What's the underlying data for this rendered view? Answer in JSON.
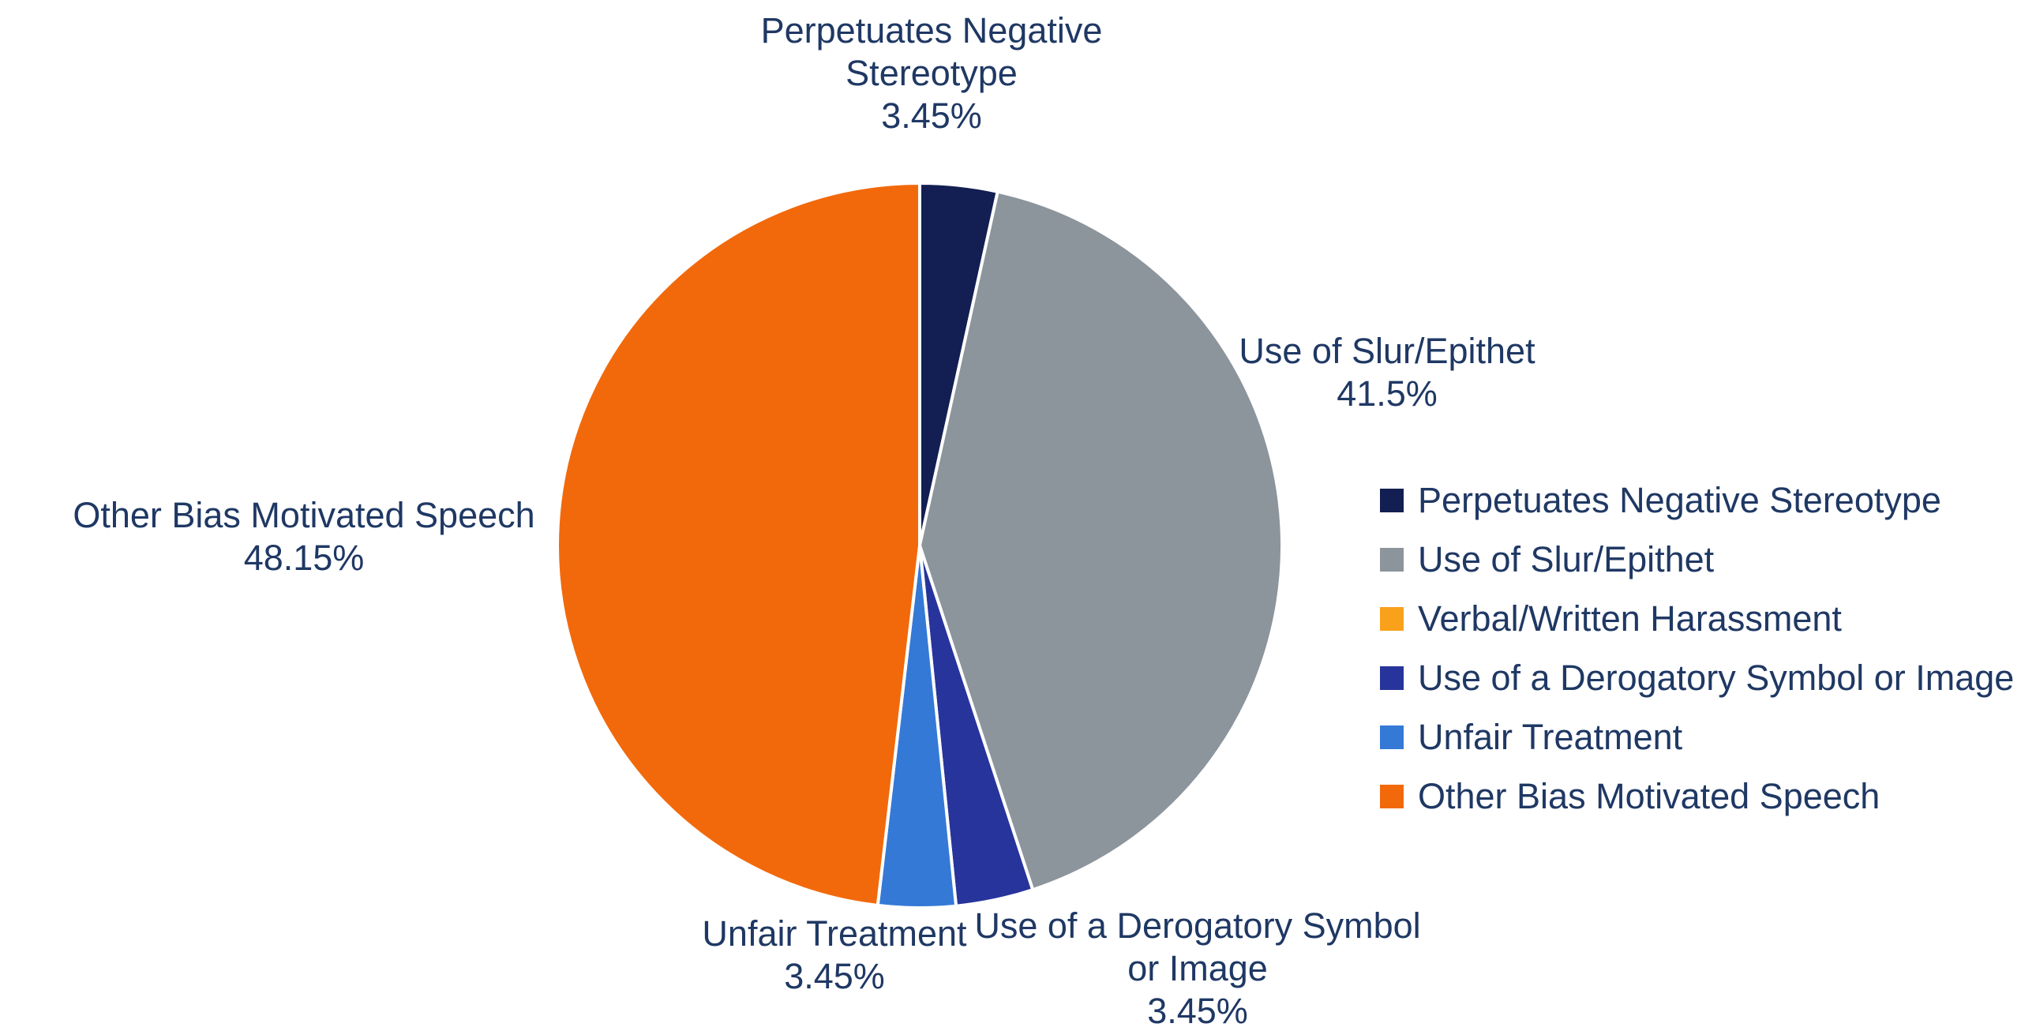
{
  "chart_data": {
    "type": "pie",
    "title": "",
    "unit": "%",
    "direction": "clockwise",
    "start_angle_deg": 0,
    "legend_position": "right",
    "slices": [
      {
        "label": "Perpetuates Negative Stereotype",
        "value": 3.45,
        "color": "#131F52"
      },
      {
        "label": "Use of Slur/Epithet",
        "value": 41.5,
        "color": "#8C949C"
      },
      {
        "label": "Verbal/Written Harassment",
        "value": 0,
        "color": "#F9A11B"
      },
      {
        "label": "Use of a Derogatory Symbol or Image",
        "value": 3.45,
        "color": "#27349B"
      },
      {
        "label": "Unfair Treatment",
        "value": 3.45,
        "color": "#3579D6"
      },
      {
        "label": "Other Bias Motivated Speech",
        "value": 48.15,
        "color": "#F2690B"
      }
    ],
    "data_labels": [
      {
        "slice": "Perpetuates Negative Stereotype",
        "lines": [
          "Perpetuates Negative",
          "Stereotype",
          "3.45%"
        ]
      },
      {
        "slice": "Use of Slur/Epithet",
        "lines": [
          "Use of Slur/Epithet",
          "41.5%"
        ]
      },
      {
        "slice": "Other Bias Motivated Speech",
        "lines": [
          "Other Bias Motivated Speech",
          "48.15%"
        ]
      },
      {
        "slice": "Unfair Treatment",
        "lines": [
          "Unfair Treatment",
          "3.45%"
        ]
      },
      {
        "slice": "Use of a Derogatory Symbol or Image",
        "lines": [
          "Use of a Derogatory Symbol",
          "or Image",
          "3.45%"
        ]
      }
    ],
    "legend_items": [
      "Perpetuates Negative Stereotype",
      "Use of Slur/Epithet",
      "Verbal/Written Harassment",
      "Use of a Derogatory Symbol or Image",
      "Unfair Treatment",
      "Other Bias Motivated Speech"
    ]
  },
  "style": {
    "text_color": "#1F3864",
    "background": "#FFFFFF",
    "slice_border_color": "#FFFFFF"
  }
}
